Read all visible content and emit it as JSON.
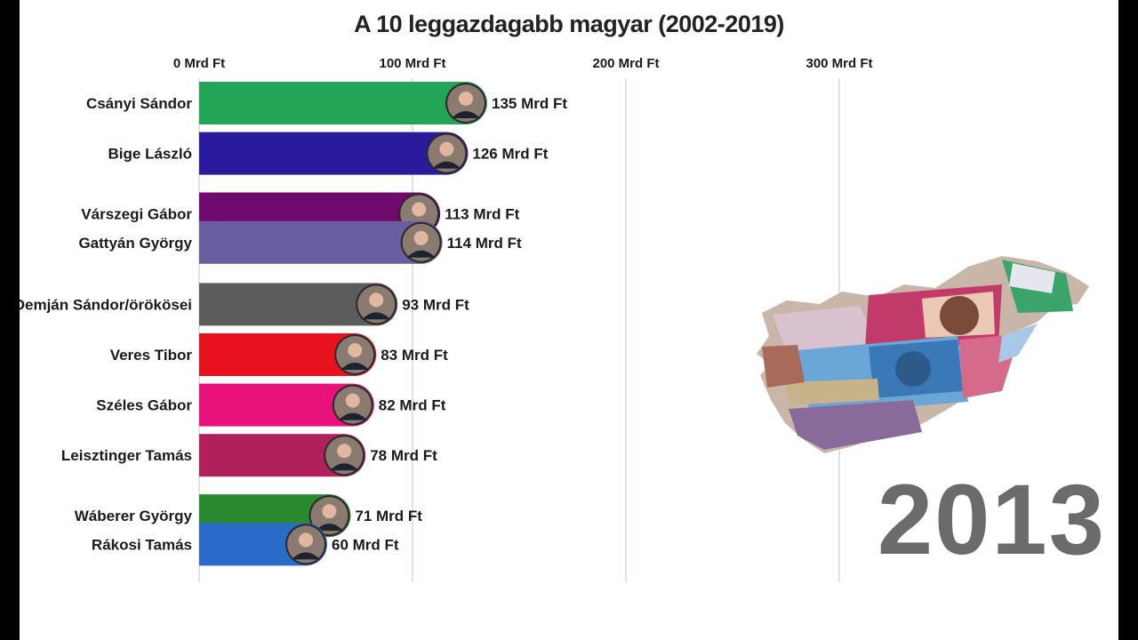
{
  "title": "A 10 leggazdagabb magyar (2002-2019)",
  "year": "2013",
  "chart_data": {
    "type": "bar",
    "orientation": "horizontal",
    "title": "A 10 leggazdagabb magyar (2002-2019)",
    "xlim": [
      0,
      360
    ],
    "x_ticks": [
      0,
      100,
      200,
      300
    ],
    "x_tick_labels": [
      "0 Mrd Ft",
      "100 Mrd Ft",
      "200 Mrd Ft",
      "300 Mrd Ft"
    ],
    "unit": "Mrd Ft",
    "grid": true,
    "categories": [
      "Csányi Sándor",
      "Bige László",
      "Várszegi Gábor",
      "Gattyán György",
      "Demján Sándor/örökösei",
      "Veres Tibor",
      "Széles Gábor",
      "Leisztinger Tamás",
      "Wáberer György",
      "Rákosi Tamás"
    ],
    "values": [
      135,
      126,
      113,
      114,
      93,
      83,
      82,
      78,
      71,
      60
    ],
    "value_labels": [
      "135 Mrd Ft",
      "126 Mrd Ft",
      "113 Mrd Ft",
      "114 Mrd Ft",
      "93 Mrd Ft",
      "83 Mrd Ft",
      "82 Mrd Ft",
      "78 Mrd Ft",
      "71 Mrd Ft",
      "60 Mrd Ft"
    ],
    "rank_positions": [
      0,
      1,
      2.2,
      2.77,
      4,
      5,
      6,
      7,
      8.2,
      8.77
    ],
    "colors": [
      "#22a557",
      "#2a1a9e",
      "#6e0a6e",
      "#6a5ea0",
      "#5c5c5c",
      "#e8121e",
      "#e8127a",
      "#b0205a",
      "#2a8a30",
      "#2a6ac8"
    ]
  }
}
